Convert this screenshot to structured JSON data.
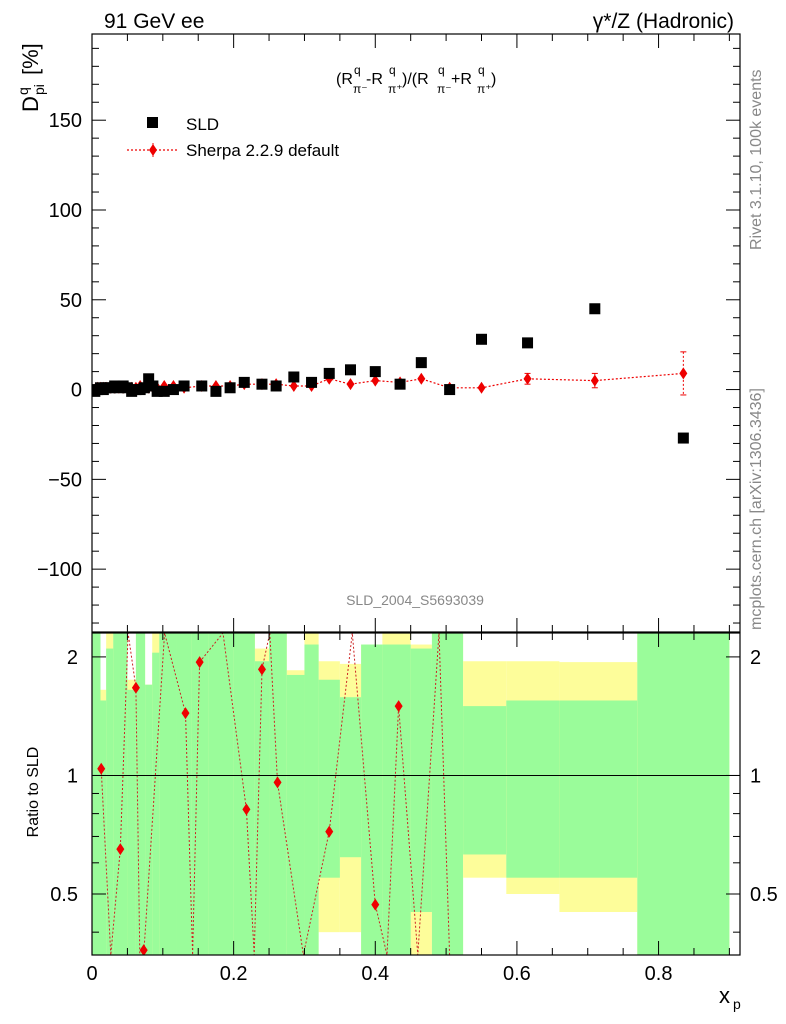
{
  "header": {
    "left_title": "91 GeV ee",
    "right_title": "γ*/Z (Hadronic)",
    "watermark": "SLD_2004_S5693039"
  },
  "side_text": {
    "rivet": "Rivet 3.1.10,  100k events",
    "mcplots": "mcplots.cern.ch [arXiv:1306.3436]"
  },
  "colors": {
    "data": "#000000",
    "mc": "#ee0000",
    "band_inner": "#9afc9a",
    "band_outer": "#fdfd9a"
  },
  "chart_data": [
    {
      "type": "scatter",
      "title": "(R^q_π⁻-R^q_π⁺)/(R^q_π⁻+R^q_π⁺)",
      "ylabel": "D^q_pi [%]",
      "xlabel": "x_p",
      "xlim": [
        0,
        0.915
      ],
      "ylim": [
        -135,
        198
      ],
      "xticks": [
        "0",
        "0.2",
        "0.4",
        "0.6",
        "0.8"
      ],
      "yticks": [
        "150",
        "100",
        "50",
        "0",
        "−50",
        "−100"
      ],
      "legend_position": "top-left",
      "series": [
        {
          "name": "SLD",
          "marker": "square",
          "x": [
            0.004,
            0.008,
            0.012,
            0.016,
            0.02,
            0.026,
            0.032,
            0.038,
            0.044,
            0.05,
            0.056,
            0.062,
            0.068,
            0.074,
            0.08,
            0.086,
            0.092,
            0.102,
            0.115,
            0.13,
            0.155,
            0.175,
            0.195,
            0.215,
            0.24,
            0.26,
            0.285,
            0.31,
            0.335,
            0.365,
            0.4,
            0.435,
            0.465,
            0.505,
            0.55,
            0.615,
            0.71,
            0.835
          ],
          "y": [
            -1,
            0,
            1,
            0,
            1,
            1,
            2,
            1,
            2,
            1,
            -1,
            0,
            0,
            1,
            6,
            2,
            -1,
            -1,
            0,
            2,
            2,
            -1,
            1,
            4,
            3,
            2,
            7,
            4,
            9,
            11,
            10,
            3,
            15,
            0,
            28,
            26,
            45,
            -27
          ]
        },
        {
          "name": "Sherpa 2.2.9 default",
          "marker": "diamond",
          "x": [
            0.004,
            0.008,
            0.012,
            0.016,
            0.02,
            0.026,
            0.032,
            0.038,
            0.044,
            0.05,
            0.056,
            0.062,
            0.068,
            0.074,
            0.08,
            0.086,
            0.092,
            0.102,
            0.115,
            0.13,
            0.155,
            0.175,
            0.195,
            0.215,
            0.24,
            0.26,
            0.285,
            0.31,
            0.335,
            0.365,
            0.4,
            0.435,
            0.465,
            0.505,
            0.55,
            0.615,
            0.71,
            0.835
          ],
          "y": [
            0,
            1,
            1,
            1,
            1,
            1,
            1,
            1,
            1,
            1,
            1,
            1,
            2,
            1,
            1,
            1,
            1,
            2,
            2,
            1,
            2,
            2,
            2,
            3,
            3,
            3,
            2,
            2,
            6,
            3,
            5,
            4,
            6,
            1,
            1,
            6,
            5,
            9
          ],
          "err": [
            1,
            1,
            1,
            1,
            1,
            1,
            1,
            1,
            1,
            1,
            1,
            1,
            1,
            1,
            1,
            1,
            1,
            1,
            1,
            1,
            1,
            1,
            1,
            1,
            1,
            1,
            1,
            2,
            2,
            2,
            2,
            2,
            2,
            2,
            2,
            3,
            4,
            12
          ]
        }
      ]
    },
    {
      "type": "line",
      "title": "",
      "ylabel": "Ratio to SLD",
      "xlabel": "x_p",
      "xlim": [
        0,
        0.915
      ],
      "ylim": [
        0.35,
        2.3
      ],
      "yticks": [
        "2",
        "1",
        "0.5"
      ],
      "reference_line": 1,
      "bands": [
        {
          "x0": 0.524,
          "x1": 0.585,
          "outer_lo": 0.55,
          "outer_hi": 1.95,
          "inner_lo": 0.63,
          "inner_hi": 1.5
        },
        {
          "x0": 0.585,
          "x1": 0.66,
          "outer_lo": 0.5,
          "outer_hi": 1.95,
          "inner_lo": 0.55,
          "inner_hi": 1.55
        },
        {
          "x0": 0.66,
          "x1": 0.77,
          "outer_lo": 0.45,
          "outer_hi": 1.94,
          "inner_lo": 0.55,
          "inner_hi": 1.55
        },
        {
          "x0": 0.77,
          "x1": 0.9,
          "outer_lo": 0.35,
          "outer_hi": 2.3,
          "inner_lo": 0.35,
          "inner_hi": 2.3
        }
      ],
      "ratio_x": [
        0.013,
        0.04,
        0.062,
        0.073,
        0.132,
        0.152,
        0.218,
        0.24,
        0.262,
        0.335,
        0.4,
        0.433
      ],
      "ratio_y": [
        1.04,
        0.65,
        1.67,
        0.35,
        1.44,
        1.94,
        0.82,
        1.86,
        0.96,
        0.72,
        0.47,
        1.5
      ]
    }
  ]
}
